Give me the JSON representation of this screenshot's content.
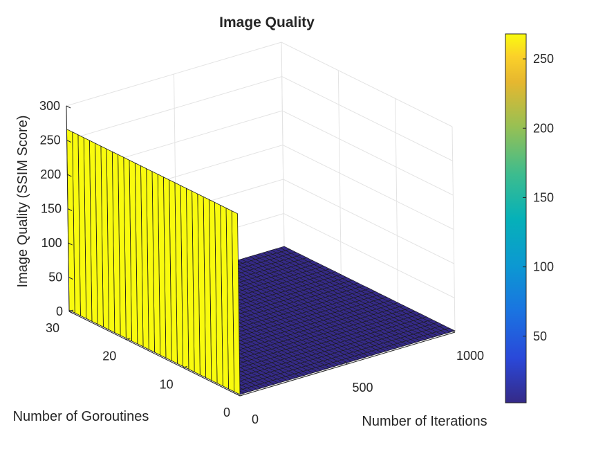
{
  "chart_data": {
    "type": "surface",
    "title": "Image Quality",
    "xlabel": "Number of Iterations",
    "ylabel": "Number of Goroutines",
    "zlabel": "Image Quality (SSIM Score)",
    "xlim": [
      0,
      1000
    ],
    "ylim": [
      0,
      30
    ],
    "zlim": [
      0,
      300
    ],
    "xticks": [
      0,
      500,
      1000
    ],
    "yticks": [
      0,
      10,
      20,
      30
    ],
    "zticks": [
      0,
      50,
      100,
      150,
      200,
      250,
      300
    ],
    "grid": true,
    "colormap": "parula",
    "colorbar": {
      "location": "right",
      "clim": [
        2,
        268
      ],
      "ticks": [
        50,
        100,
        150,
        200,
        250
      ]
    },
    "surface": {
      "x_grid_lines": 50,
      "y_grid_lines": 30,
      "wall_at_x": 0,
      "wall_value": 266,
      "floor_value": 2,
      "wall_color": "#f9fb0e",
      "floor_color": "#352a87",
      "edge_color": "#1a1a1a"
    }
  }
}
